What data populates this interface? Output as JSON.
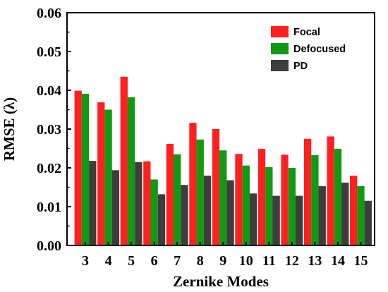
{
  "chart_data": {
    "type": "bar",
    "title": "",
    "xlabel": "Zernike Modes",
    "ylabel": "RMSE (λ)",
    "ylim": [
      0,
      0.06
    ],
    "yticks": [
      "0.00",
      "0.01",
      "0.02",
      "0.03",
      "0.04",
      "0.05",
      "0.06"
    ],
    "grid": false,
    "legend_position": "top-right",
    "categories": [
      "3",
      "4",
      "5",
      "6",
      "7",
      "8",
      "9",
      "10",
      "11",
      "12",
      "13",
      "14",
      "15"
    ],
    "series": [
      {
        "name": "Focal",
        "color": "#ff2020",
        "values": [
          0.0399,
          0.0369,
          0.0435,
          0.0217,
          0.0262,
          0.0316,
          0.03,
          0.0236,
          0.0249,
          0.0234,
          0.0275,
          0.0281,
          0.018
        ]
      },
      {
        "name": "Defocused",
        "color": "#119911",
        "values": [
          0.0391,
          0.035,
          0.0382,
          0.017,
          0.0235,
          0.0273,
          0.0245,
          0.0206,
          0.0202,
          0.02,
          0.0233,
          0.0249,
          0.0153
        ]
      },
      {
        "name": "PD",
        "color": "#3d3d3d",
        "values": [
          0.0218,
          0.0194,
          0.0215,
          0.0132,
          0.0156,
          0.018,
          0.0168,
          0.0134,
          0.0128,
          0.0128,
          0.0153,
          0.0162,
          0.0115
        ]
      }
    ]
  }
}
